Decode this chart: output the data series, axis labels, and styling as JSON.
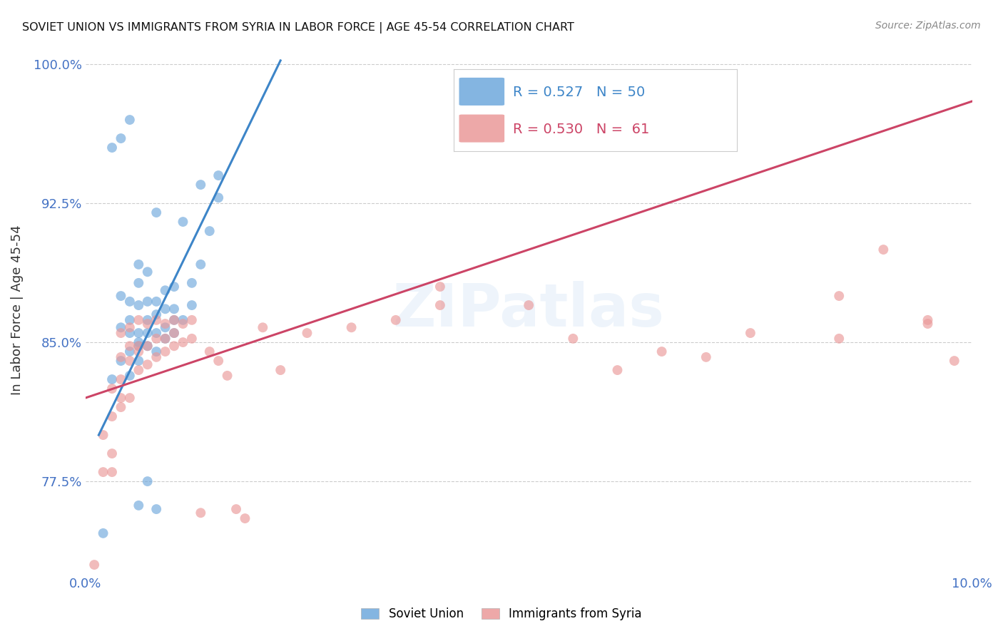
{
  "title": "SOVIET UNION VS IMMIGRANTS FROM SYRIA IN LABOR FORCE | AGE 45-54 CORRELATION CHART",
  "source_text": "Source: ZipAtlas.com",
  "ylabel": "In Labor Force | Age 45-54",
  "xlim": [
    0.0,
    0.1
  ],
  "ylim": [
    0.725,
    1.01
  ],
  "yticks": [
    0.775,
    0.85,
    0.925,
    1.0
  ],
  "ytick_labels": [
    "77.5%",
    "85.0%",
    "92.5%",
    "100.0%"
  ],
  "xticks": [
    0.0,
    0.02,
    0.04,
    0.06,
    0.08,
    0.1
  ],
  "xtick_labels": [
    "0.0%",
    "",
    "",
    "",
    "",
    "10.0%"
  ],
  "soviet_color": "#6fa8dc",
  "syria_color": "#ea9999",
  "soviet_line_color": "#3d85c8",
  "syria_line_color": "#cc4466",
  "background_color": "#ffffff",
  "grid_color": "#cccccc",
  "tick_label_color": "#4472c4",
  "watermark_text": "ZIPatlas",
  "legend_su_label": "R = 0.527   N = 50",
  "legend_sy_label": "R = 0.530   N =  61",
  "bottom_legend_su": "Soviet Union",
  "bottom_legend_sy": "Immigrants from Syria",
  "soviet_line_x": [
    0.0015,
    0.022
  ],
  "soviet_line_y": [
    0.8,
    1.002
  ],
  "syria_line_x": [
    0.0,
    0.1
  ],
  "syria_line_y": [
    0.82,
    0.98
  ],
  "soviet_x": [
    0.002,
    0.003,
    0.004,
    0.004,
    0.004,
    0.005,
    0.005,
    0.005,
    0.005,
    0.005,
    0.006,
    0.006,
    0.006,
    0.006,
    0.006,
    0.006,
    0.006,
    0.007,
    0.007,
    0.007,
    0.007,
    0.007,
    0.008,
    0.008,
    0.008,
    0.008,
    0.008,
    0.009,
    0.009,
    0.009,
    0.009,
    0.01,
    0.01,
    0.01,
    0.01,
    0.011,
    0.011,
    0.012,
    0.012,
    0.013,
    0.013,
    0.014,
    0.015,
    0.015,
    0.003,
    0.004,
    0.005,
    0.006,
    0.007,
    0.008
  ],
  "soviet_y": [
    0.747,
    0.83,
    0.84,
    0.858,
    0.875,
    0.832,
    0.845,
    0.855,
    0.862,
    0.872,
    0.84,
    0.848,
    0.85,
    0.855,
    0.87,
    0.882,
    0.892,
    0.848,
    0.855,
    0.862,
    0.872,
    0.888,
    0.845,
    0.855,
    0.865,
    0.872,
    0.92,
    0.852,
    0.858,
    0.868,
    0.878,
    0.855,
    0.862,
    0.868,
    0.88,
    0.862,
    0.915,
    0.87,
    0.882,
    0.892,
    0.935,
    0.91,
    0.928,
    0.94,
    0.955,
    0.96,
    0.97,
    0.762,
    0.775,
    0.76
  ],
  "syria_x": [
    0.001,
    0.002,
    0.002,
    0.003,
    0.003,
    0.003,
    0.003,
    0.004,
    0.004,
    0.004,
    0.004,
    0.004,
    0.005,
    0.005,
    0.005,
    0.005,
    0.006,
    0.006,
    0.006,
    0.006,
    0.007,
    0.007,
    0.007,
    0.008,
    0.008,
    0.008,
    0.009,
    0.009,
    0.009,
    0.01,
    0.01,
    0.01,
    0.011,
    0.011,
    0.012,
    0.012,
    0.013,
    0.014,
    0.015,
    0.016,
    0.017,
    0.018,
    0.02,
    0.022,
    0.025,
    0.03,
    0.035,
    0.04,
    0.05,
    0.06,
    0.07,
    0.075,
    0.085,
    0.09,
    0.095,
    0.098,
    0.04,
    0.055,
    0.065,
    0.085,
    0.095
  ],
  "syria_y": [
    0.73,
    0.78,
    0.8,
    0.78,
    0.79,
    0.81,
    0.825,
    0.815,
    0.82,
    0.83,
    0.842,
    0.855,
    0.82,
    0.84,
    0.848,
    0.858,
    0.835,
    0.845,
    0.848,
    0.862,
    0.838,
    0.848,
    0.86,
    0.842,
    0.852,
    0.862,
    0.845,
    0.852,
    0.86,
    0.848,
    0.855,
    0.862,
    0.85,
    0.86,
    0.852,
    0.862,
    0.758,
    0.845,
    0.84,
    0.832,
    0.76,
    0.755,
    0.858,
    0.835,
    0.855,
    0.858,
    0.862,
    0.87,
    0.87,
    0.835,
    0.842,
    0.855,
    0.875,
    0.9,
    0.86,
    0.84,
    0.88,
    0.852,
    0.845,
    0.852,
    0.862
  ]
}
